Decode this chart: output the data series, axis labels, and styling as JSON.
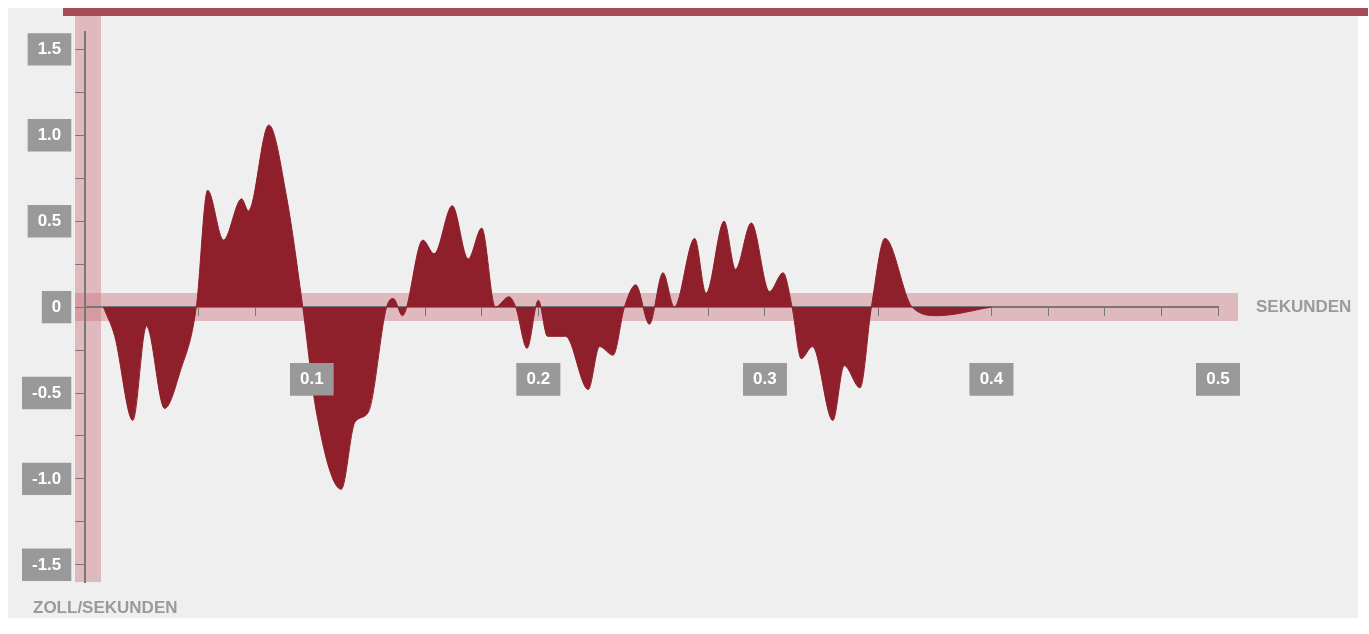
{
  "chart_data": {
    "type": "area",
    "xlabel": "SEKUNDEN",
    "ylabel": "ZOLL/SEKUNDEN",
    "x": [
      0.008,
      0.013,
      0.021,
      0.027,
      0.035,
      0.042,
      0.049,
      0.054,
      0.061,
      0.069,
      0.072,
      0.081,
      0.089,
      0.096,
      0.102,
      0.113,
      0.119,
      0.125,
      0.133,
      0.136,
      0.14,
      0.149,
      0.154,
      0.162,
      0.169,
      0.175,
      0.181,
      0.187,
      0.19,
      0.195,
      0.2,
      0.204,
      0.212,
      0.222,
      0.227,
      0.233,
      0.238,
      0.243,
      0.249,
      0.255,
      0.26,
      0.269,
      0.274,
      0.282,
      0.287,
      0.294,
      0.302,
      0.308,
      0.312,
      0.316,
      0.321,
      0.33,
      0.335,
      0.342,
      0.347,
      0.353,
      0.365,
      0.376,
      0.4
    ],
    "series": [
      {
        "color": "#8e1f2b",
        "values": [
          0,
          -0.17,
          -0.66,
          -0.11,
          -0.59,
          -0.37,
          0,
          0.68,
          0.39,
          0.63,
          0.56,
          1.06,
          0.63,
          0,
          -0.61,
          -1.06,
          -0.67,
          -0.61,
          0,
          0.05,
          -0.05,
          0.39,
          0.31,
          0.59,
          0.28,
          0.46,
          0,
          0.06,
          0,
          -0.24,
          0.04,
          -0.17,
          -0.17,
          -0.48,
          -0.23,
          -0.28,
          0,
          0.13,
          -0.1,
          0.2,
          0,
          0.4,
          0.08,
          0.5,
          0.22,
          0.49,
          0.09,
          0.2,
          0,
          -0.3,
          -0.23,
          -0.66,
          -0.34,
          -0.47,
          0,
          0.4,
          0,
          -0.05,
          0
        ]
      }
    ],
    "xlim": [
      0,
      0.5
    ],
    "xticks": [
      {
        "value": 0.025,
        "label": null
      },
      {
        "value": 0.05,
        "label": null
      },
      {
        "value": 0.075,
        "label": null
      },
      0.1,
      {
        "value": 0.125,
        "label": null
      },
      {
        "value": 0.15,
        "label": null
      },
      {
        "value": 0.175,
        "label": null
      },
      0.2,
      {
        "value": 0.225,
        "label": null
      },
      {
        "value": 0.25,
        "label": null
      },
      {
        "value": 0.275,
        "label": null
      },
      0.3,
      {
        "value": 0.325,
        "label": null
      },
      {
        "value": 0.35,
        "label": null
      },
      {
        "value": 0.375,
        "label": null
      },
      0.4,
      {
        "value": 0.425,
        "label": null
      },
      {
        "value": 0.45,
        "label": null
      },
      {
        "value": 0.475,
        "label": null
      },
      0.5
    ],
    "ylim": [
      -1.6,
      1.6
    ],
    "yticks": [
      -1.5,
      {
        "value": -1.25,
        "label": null
      },
      {
        "value": -1,
        "label": "-1.0"
      },
      {
        "value": -0.75,
        "label": null
      },
      -0.5,
      {
        "value": -0.25,
        "label": null
      },
      0,
      {
        "value": 0.25,
        "label": null
      },
      0.5,
      {
        "value": 0.75,
        "label": null
      },
      {
        "value": 1,
        "label": "1.0"
      },
      {
        "value": 1.25,
        "label": null
      },
      1.5
    ],
    "legend": false
  }
}
